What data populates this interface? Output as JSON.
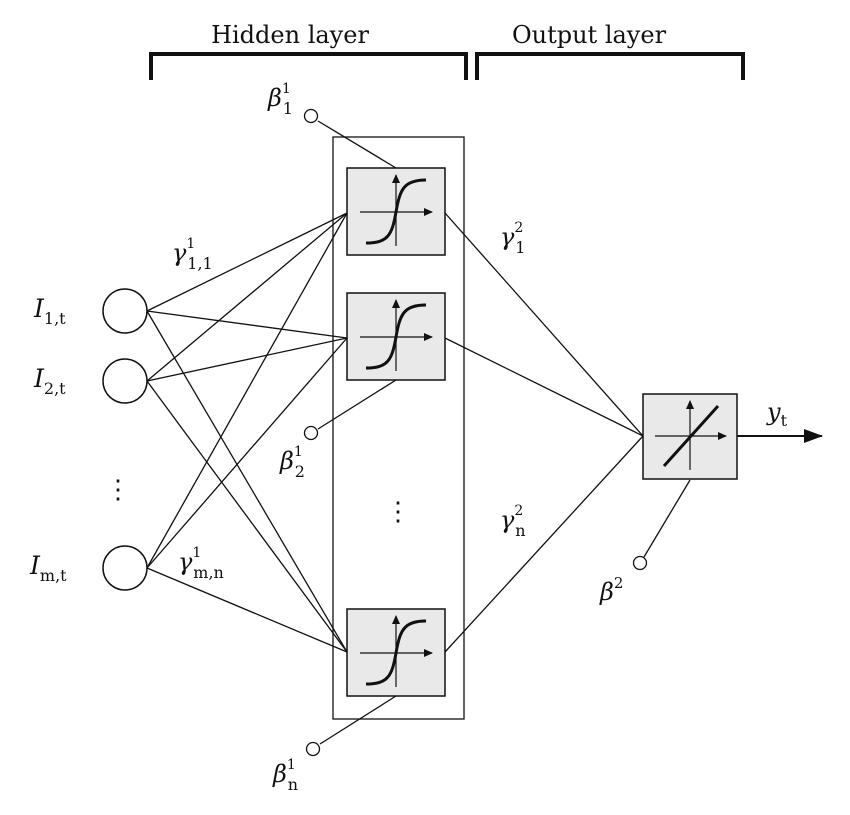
{
  "headers": {
    "hidden": "Hidden layer",
    "output": "Output layer"
  },
  "inputs": [
    {
      "base": "I",
      "sub": "1,t"
    },
    {
      "base": "I",
      "sub": "2,t"
    },
    {
      "base": "I",
      "sub": "m,t"
    }
  ],
  "weights": {
    "hidden_first": {
      "base": "γ",
      "sup": "1",
      "sub": "1,1"
    },
    "hidden_last": {
      "base": "γ",
      "sup": "1",
      "sub": "m,n"
    },
    "output_first": {
      "base": "γ",
      "sup": "2",
      "sub": "1"
    },
    "output_last": {
      "base": "γ",
      "sup": "2",
      "sub": "n"
    }
  },
  "biases": {
    "hidden_1": {
      "base": "β",
      "sup": "1",
      "sub": "1"
    },
    "hidden_2": {
      "base": "β",
      "sup": "1",
      "sub": "2"
    },
    "hidden_n": {
      "base": "β",
      "sup": "1",
      "sub": "n"
    },
    "output": {
      "base": "β",
      "sup": "2"
    }
  },
  "output_label": {
    "base": "y",
    "sub": "t"
  },
  "ellipsis": "⋮",
  "colors": {
    "neuron_fill": "#e9e9e9",
    "stroke": "#111111"
  },
  "icons": {
    "hidden_activation": "sigmoid-curve-icon",
    "output_activation": "linear-activation-icon"
  }
}
